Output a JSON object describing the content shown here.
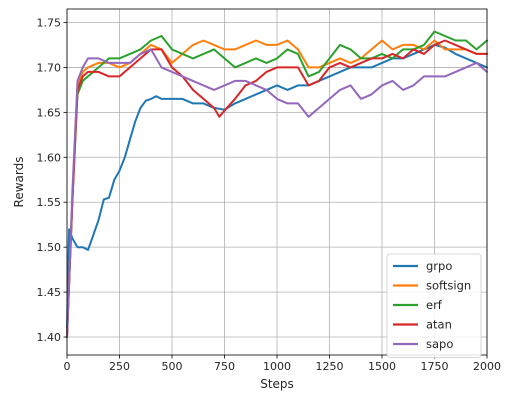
{
  "chart_data": {
    "type": "line",
    "title": "",
    "xlabel": "Steps",
    "ylabel": "Rewards",
    "xlim": [
      0,
      2000
    ],
    "ylim": [
      1.38,
      1.765
    ],
    "xticks": [
      0,
      250,
      500,
      750,
      1000,
      1250,
      1500,
      1750,
      2000
    ],
    "xtick_labels": [
      "0",
      "250",
      "500",
      "750",
      "1000",
      "1250",
      "1500",
      "1750",
      "2000"
    ],
    "yticks": [
      1.4,
      1.45,
      1.5,
      1.55,
      1.6,
      1.65,
      1.7,
      1.75
    ],
    "ytick_labels": [
      "1.40",
      "1.45",
      "1.50",
      "1.55",
      "1.60",
      "1.65",
      "1.70",
      "1.75"
    ],
    "grid": true,
    "legend_position": "bottom-right",
    "series": [
      {
        "name": "grpo",
        "color": "#1f77b4",
        "x": [
          0,
          10,
          25,
          50,
          75,
          100,
          120,
          150,
          175,
          200,
          225,
          250,
          275,
          300,
          325,
          350,
          375,
          400,
          425,
          450,
          500,
          550,
          600,
          650,
          700,
          750,
          800,
          850,
          900,
          950,
          1000,
          1050,
          1100,
          1150,
          1200,
          1250,
          1300,
          1350,
          1400,
          1450,
          1500,
          1550,
          1600,
          1650,
          1700,
          1750,
          1800,
          1850,
          1900,
          1950,
          2000
        ],
        "y": [
          1.41,
          1.52,
          1.51,
          1.5,
          1.5,
          1.497,
          1.51,
          1.53,
          1.553,
          1.555,
          1.575,
          1.585,
          1.6,
          1.62,
          1.64,
          1.655,
          1.663,
          1.665,
          1.668,
          1.665,
          1.665,
          1.665,
          1.66,
          1.66,
          1.655,
          1.653,
          1.66,
          1.665,
          1.67,
          1.675,
          1.68,
          1.675,
          1.68,
          1.68,
          1.685,
          1.69,
          1.695,
          1.7,
          1.7,
          1.7,
          1.705,
          1.71,
          1.71,
          1.715,
          1.72,
          1.725,
          1.722,
          1.715,
          1.71,
          1.705,
          1.7
        ]
      },
      {
        "name": "softsign",
        "color": "#ff7f0e",
        "x": [
          0,
          25,
          50,
          75,
          100,
          150,
          200,
          250,
          300,
          350,
          400,
          450,
          500,
          550,
          600,
          650,
          700,
          750,
          800,
          850,
          900,
          950,
          1000,
          1050,
          1100,
          1150,
          1200,
          1250,
          1300,
          1350,
          1400,
          1450,
          1500,
          1550,
          1600,
          1650,
          1700,
          1750,
          1800,
          1850,
          1900,
          1950,
          2000
        ],
        "y": [
          1.4,
          1.55,
          1.68,
          1.695,
          1.7,
          1.705,
          1.705,
          1.7,
          1.705,
          1.715,
          1.725,
          1.72,
          1.705,
          1.715,
          1.725,
          1.73,
          1.725,
          1.72,
          1.72,
          1.725,
          1.73,
          1.725,
          1.725,
          1.73,
          1.72,
          1.7,
          1.7,
          1.705,
          1.71,
          1.705,
          1.71,
          1.72,
          1.73,
          1.72,
          1.725,
          1.725,
          1.72,
          1.73,
          1.72,
          1.72,
          1.72,
          1.715,
          1.715
        ]
      },
      {
        "name": "erf",
        "color": "#2ca02c",
        "x": [
          0,
          25,
          50,
          75,
          100,
          150,
          200,
          250,
          300,
          350,
          400,
          450,
          500,
          550,
          600,
          650,
          700,
          750,
          800,
          850,
          900,
          950,
          1000,
          1050,
          1100,
          1150,
          1200,
          1250,
          1300,
          1350,
          1400,
          1450,
          1500,
          1550,
          1600,
          1650,
          1700,
          1750,
          1800,
          1850,
          1900,
          1950,
          2000
        ],
        "y": [
          1.4,
          1.55,
          1.67,
          1.685,
          1.69,
          1.7,
          1.71,
          1.71,
          1.715,
          1.72,
          1.73,
          1.735,
          1.72,
          1.715,
          1.71,
          1.715,
          1.72,
          1.71,
          1.7,
          1.705,
          1.71,
          1.705,
          1.71,
          1.72,
          1.715,
          1.69,
          1.695,
          1.71,
          1.725,
          1.72,
          1.71,
          1.71,
          1.715,
          1.71,
          1.72,
          1.72,
          1.725,
          1.74,
          1.735,
          1.73,
          1.73,
          1.72,
          1.73
        ]
      },
      {
        "name": "atan",
        "color": "#d62728",
        "x": [
          0,
          25,
          50,
          75,
          100,
          150,
          200,
          250,
          300,
          350,
          400,
          450,
          500,
          550,
          600,
          650,
          700,
          725,
          750,
          800,
          850,
          900,
          950,
          1000,
          1050,
          1100,
          1150,
          1200,
          1250,
          1300,
          1350,
          1400,
          1450,
          1500,
          1550,
          1600,
          1650,
          1700,
          1750,
          1800,
          1850,
          1900,
          1950,
          2000
        ],
        "y": [
          1.4,
          1.55,
          1.675,
          1.69,
          1.695,
          1.695,
          1.69,
          1.69,
          1.7,
          1.71,
          1.72,
          1.72,
          1.7,
          1.69,
          1.675,
          1.665,
          1.655,
          1.645,
          1.652,
          1.665,
          1.68,
          1.685,
          1.695,
          1.7,
          1.7,
          1.7,
          1.68,
          1.685,
          1.7,
          1.705,
          1.7,
          1.705,
          1.71,
          1.71,
          1.715,
          1.71,
          1.72,
          1.715,
          1.725,
          1.73,
          1.725,
          1.72,
          1.715,
          1.715
        ]
      },
      {
        "name": "sapo",
        "color": "#9467bd",
        "x": [
          0,
          25,
          50,
          75,
          100,
          150,
          200,
          250,
          300,
          350,
          400,
          450,
          500,
          550,
          600,
          650,
          700,
          750,
          800,
          850,
          900,
          950,
          1000,
          1050,
          1100,
          1150,
          1200,
          1250,
          1300,
          1350,
          1400,
          1450,
          1500,
          1550,
          1600,
          1650,
          1700,
          1750,
          1800,
          1850,
          1900,
          1950,
          2000
        ],
        "y": [
          1.4,
          1.56,
          1.685,
          1.7,
          1.71,
          1.71,
          1.705,
          1.705,
          1.705,
          1.715,
          1.72,
          1.7,
          1.695,
          1.69,
          1.685,
          1.68,
          1.675,
          1.68,
          1.685,
          1.685,
          1.68,
          1.675,
          1.665,
          1.66,
          1.66,
          1.645,
          1.655,
          1.665,
          1.675,
          1.68,
          1.665,
          1.67,
          1.68,
          1.685,
          1.675,
          1.68,
          1.69,
          1.69,
          1.69,
          1.695,
          1.7,
          1.705,
          1.695
        ]
      }
    ]
  }
}
